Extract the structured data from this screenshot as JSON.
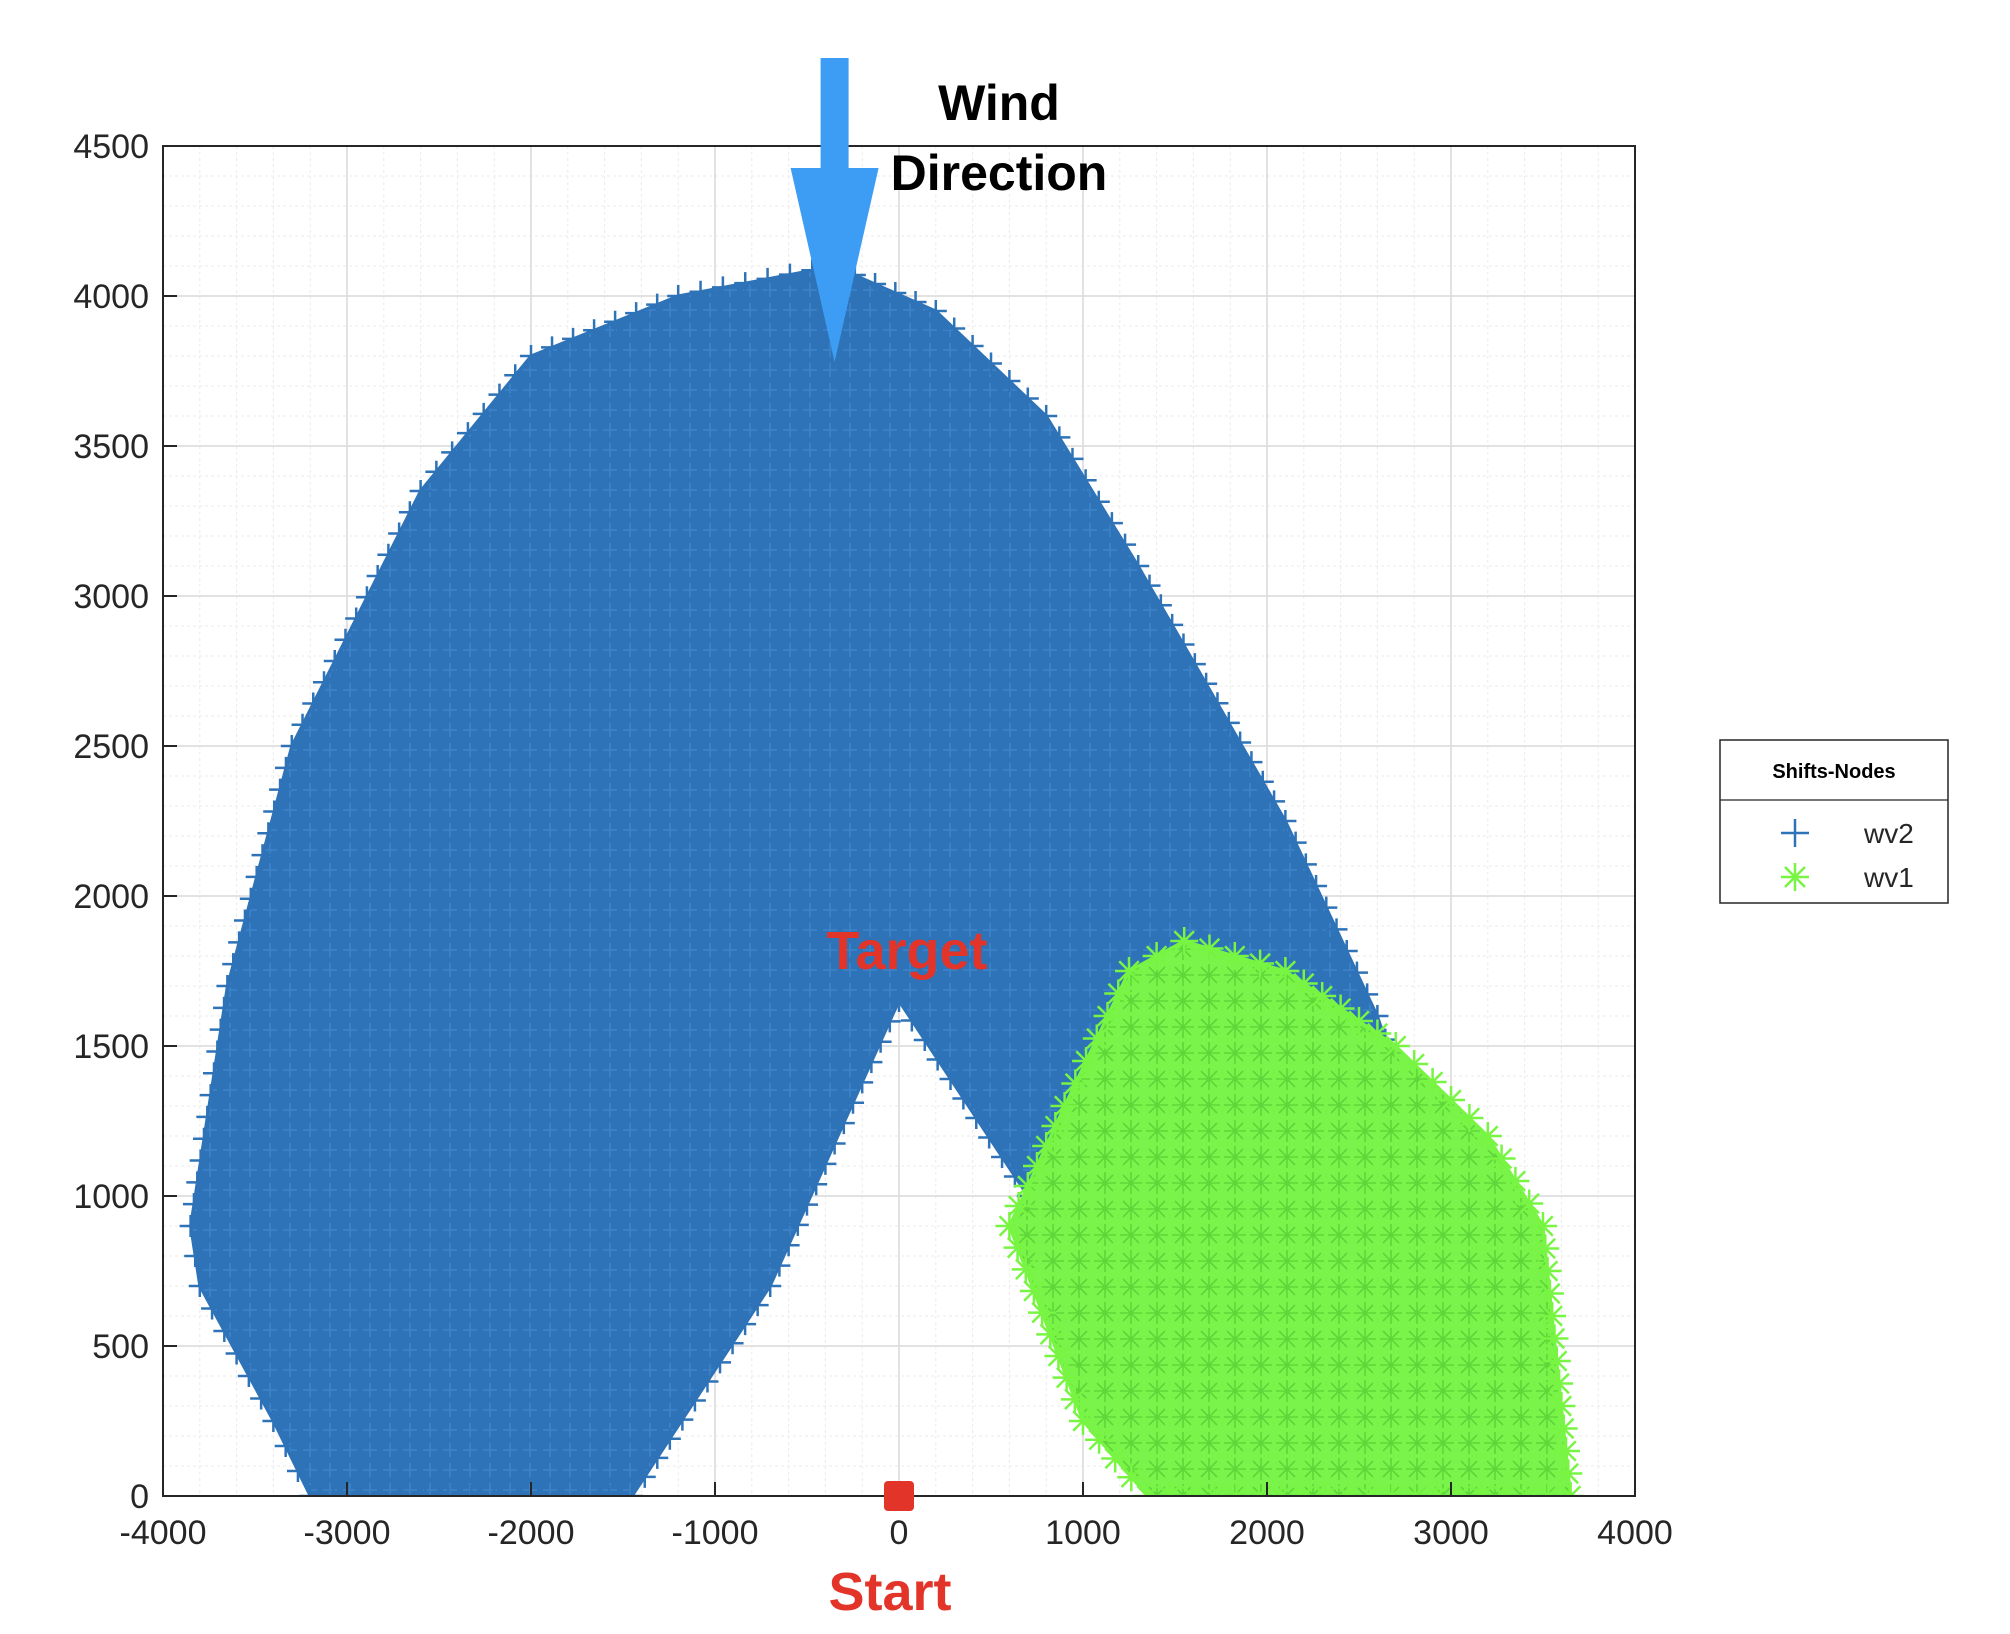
{
  "chart_data": {
    "type": "scatter",
    "title": "",
    "xlabel": "",
    "ylabel": "",
    "xlim": [
      -4000,
      4000
    ],
    "ylim": [
      0,
      4500
    ],
    "xticks": [
      -4000,
      -3000,
      -2000,
      -1000,
      0,
      1000,
      2000,
      3000,
      4000
    ],
    "yticks": [
      0,
      500,
      1000,
      1500,
      2000,
      2500,
      3000,
      3500,
      4000,
      4500
    ],
    "xtick_labels": [
      "-4000",
      "-3000",
      "-2000",
      "-1000",
      "0",
      "1000",
      "2000",
      "3000",
      "4000"
    ],
    "ytick_labels": [
      "0",
      "500",
      "1000",
      "1500",
      "2000",
      "2500",
      "3000",
      "3500",
      "4000",
      "4500"
    ],
    "grid": true,
    "minor_grid": true,
    "legend": {
      "title": "Shifts-Nodes",
      "placement": "right",
      "entries": [
        {
          "name": "wv2",
          "marker": "+",
          "color": "#2e72b8"
        },
        {
          "name": "wv1",
          "marker": "*",
          "color": "#77f542"
        }
      ]
    },
    "series": [
      {
        "name": "wv2",
        "marker": "+",
        "color": "#2e72b8",
        "region_outline": [
          [
            -1450,
            0
          ],
          [
            -3200,
            0
          ],
          [
            -3400,
            250
          ],
          [
            -3800,
            700
          ],
          [
            -3850,
            900
          ],
          [
            -3650,
            1700
          ],
          [
            -3300,
            2500
          ],
          [
            -2600,
            3350
          ],
          [
            -2000,
            3800
          ],
          [
            -1200,
            4000
          ],
          [
            -350,
            4100
          ],
          [
            200,
            3950
          ],
          [
            800,
            3600
          ],
          [
            1300,
            3100
          ],
          [
            2100,
            2250
          ],
          [
            2600,
            1600
          ],
          [
            2900,
            1050
          ],
          [
            3200,
            900
          ],
          [
            2200,
            900
          ],
          [
            1400,
            1000
          ],
          [
            700,
            1000
          ],
          [
            0,
            1650
          ],
          [
            -700,
            700
          ]
        ]
      },
      {
        "name": "wv1",
        "marker": "*",
        "color": "#77f542",
        "region_outline": [
          [
            600,
            900
          ],
          [
            900,
            1300
          ],
          [
            1250,
            1750
          ],
          [
            1550,
            1850
          ],
          [
            2100,
            1750
          ],
          [
            2700,
            1500
          ],
          [
            3200,
            1200
          ],
          [
            3500,
            900
          ],
          [
            3600,
            300
          ],
          [
            3650,
            0
          ],
          [
            1350,
            0
          ],
          [
            1000,
            250
          ]
        ]
      }
    ],
    "annotations": [
      {
        "text": "Wind",
        "color": "#000000"
      },
      {
        "text": "Direction",
        "color": "#000000"
      },
      {
        "text": "Target",
        "x": 0,
        "y": 1650,
        "color": "#e3342a"
      },
      {
        "text": "Start",
        "x": 0,
        "y": 0,
        "color": "#e3342a"
      }
    ],
    "markers": [
      {
        "name": "start-point",
        "x": 0,
        "y": 0,
        "shape": "square",
        "color": "#e3342a"
      }
    ],
    "wind_arrow": {
      "x": -350,
      "direction": "down",
      "color": "#3d9df5"
    }
  }
}
